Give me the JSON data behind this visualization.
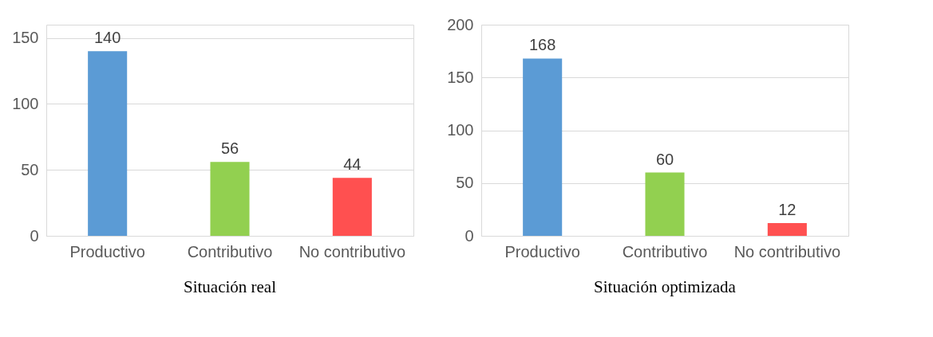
{
  "chart_data": [
    {
      "type": "bar",
      "title": "Situación real",
      "categories": [
        "Productivo",
        "Contributivo",
        "No contributivo"
      ],
      "values": [
        140,
        56,
        44
      ],
      "colors": [
        "#5b9bd5",
        "#92d050",
        "#ff5050"
      ],
      "ylim": [
        0,
        160
      ],
      "yticks": [
        0,
        50,
        100,
        150
      ],
      "grid": "y",
      "data_labels": true
    },
    {
      "type": "bar",
      "title": "Situación optimizada",
      "categories": [
        "Productivo",
        "Contributivo",
        "No contributivo"
      ],
      "values": [
        168,
        60,
        12
      ],
      "colors": [
        "#5b9bd5",
        "#92d050",
        "#ff5050"
      ],
      "ylim": [
        0,
        200
      ],
      "yticks": [
        0,
        50,
        100,
        150,
        200
      ],
      "grid": "y",
      "data_labels": true
    }
  ]
}
